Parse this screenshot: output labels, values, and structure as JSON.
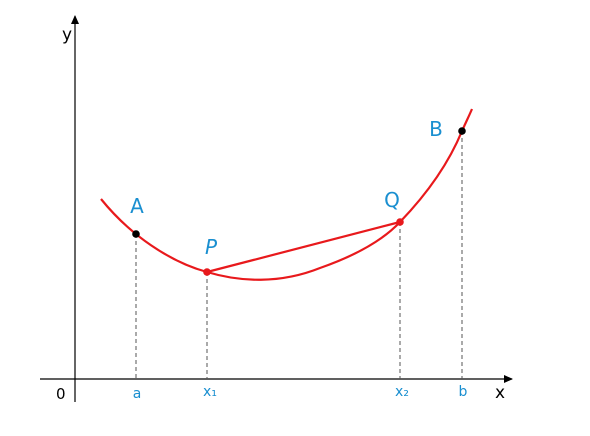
{
  "axes": {
    "y_label": "y",
    "x_label": "x",
    "origin": "0"
  },
  "x_marks": [
    "a",
    "x₁",
    "x₂",
    "b"
  ],
  "points": {
    "A": "A",
    "P": "P",
    "Q": "Q",
    "B": "B"
  }
}
